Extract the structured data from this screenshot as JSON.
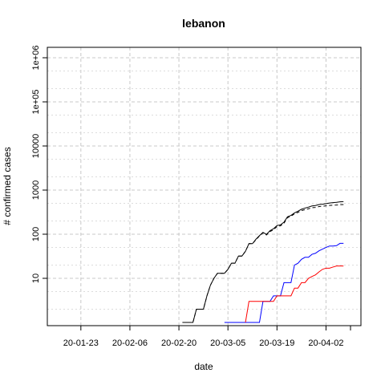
{
  "chart_data": {
    "type": "line",
    "title": "lebanon",
    "xlabel": "date",
    "ylabel": "# confirmed cases",
    "y_scale": "log",
    "ylim": [
      1,
      1000000
    ],
    "xlim": [
      "2020-01-18",
      "2020-04-09"
    ],
    "grid": true,
    "x_ticks": [
      {
        "date": "2020-01-23",
        "label": "20-01-23"
      },
      {
        "date": "2020-02-06",
        "label": "20-02-06"
      },
      {
        "date": "2020-02-20",
        "label": "20-02-20"
      },
      {
        "date": "2020-03-05",
        "label": "20-03-05"
      },
      {
        "date": "2020-03-19",
        "label": "20-03-19"
      },
      {
        "date": "2020-04-02",
        "label": "20-04-02"
      }
    ],
    "y_ticks": [
      {
        "value": 10,
        "label": "10"
      },
      {
        "value": 100,
        "label": "100"
      },
      {
        "value": 1000,
        "label": "1000"
      },
      {
        "value": 10000,
        "label": "10000"
      },
      {
        "value": 100000,
        "label": "1e+05"
      },
      {
        "value": 1000000,
        "label": "1e+06"
      }
    ],
    "series": [
      {
        "color": "#000000",
        "style": "solid",
        "points": [
          [
            "2020-02-21",
            1
          ],
          [
            "2020-02-24",
            1
          ],
          [
            "2020-02-25",
            2
          ],
          [
            "2020-02-27",
            2
          ],
          [
            "2020-02-28",
            4
          ],
          [
            "2020-02-29",
            7
          ],
          [
            "2020-03-01",
            10
          ],
          [
            "2020-03-02",
            13
          ],
          [
            "2020-03-04",
            13
          ],
          [
            "2020-03-05",
            16
          ],
          [
            "2020-03-06",
            22
          ],
          [
            "2020-03-07",
            22
          ],
          [
            "2020-03-08",
            32
          ],
          [
            "2020-03-09",
            32
          ],
          [
            "2020-03-10",
            41
          ],
          [
            "2020-03-11",
            61
          ],
          [
            "2020-03-12",
            61
          ],
          [
            "2020-03-13",
            77
          ],
          [
            "2020-03-14",
            93
          ],
          [
            "2020-03-15",
            110
          ],
          [
            "2020-03-16",
            99
          ],
          [
            "2020-03-17",
            120
          ],
          [
            "2020-03-18",
            133
          ],
          [
            "2020-03-19",
            157
          ],
          [
            "2020-03-20",
            163
          ],
          [
            "2020-03-21",
            187
          ],
          [
            "2020-03-22",
            248
          ],
          [
            "2020-03-23",
            267
          ],
          [
            "2020-03-24",
            304
          ],
          [
            "2020-03-25",
            333
          ],
          [
            "2020-03-26",
            368
          ],
          [
            "2020-03-27",
            391
          ],
          [
            "2020-03-28",
            412
          ],
          [
            "2020-03-29",
            438
          ],
          [
            "2020-03-30",
            446
          ],
          [
            "2020-03-31",
            470
          ],
          [
            "2020-04-01",
            479
          ],
          [
            "2020-04-02",
            494
          ],
          [
            "2020-04-03",
            508
          ],
          [
            "2020-04-04",
            520
          ],
          [
            "2020-04-05",
            527
          ],
          [
            "2020-04-06",
            541
          ],
          [
            "2020-04-07",
            548
          ]
        ]
      },
      {
        "color": "#000000",
        "style": "dashed",
        "points": [
          [
            "2020-02-21",
            1
          ],
          [
            "2020-02-24",
            1
          ],
          [
            "2020-02-25",
            2
          ],
          [
            "2020-02-27",
            2
          ],
          [
            "2020-02-28",
            4
          ],
          [
            "2020-02-29",
            7
          ],
          [
            "2020-03-01",
            10
          ],
          [
            "2020-03-02",
            13
          ],
          [
            "2020-03-04",
            13
          ],
          [
            "2020-03-05",
            16
          ],
          [
            "2020-03-06",
            22
          ],
          [
            "2020-03-07",
            22
          ],
          [
            "2020-03-08",
            32
          ],
          [
            "2020-03-09",
            32
          ],
          [
            "2020-03-10",
            41
          ],
          [
            "2020-03-11",
            61
          ],
          [
            "2020-03-12",
            61
          ],
          [
            "2020-03-13",
            75
          ],
          [
            "2020-03-14",
            91
          ],
          [
            "2020-03-15",
            107
          ],
          [
            "2020-03-16",
            96
          ],
          [
            "2020-03-17",
            115
          ],
          [
            "2020-03-18",
            126
          ],
          [
            "2020-03-19",
            149
          ],
          [
            "2020-03-20",
            155
          ],
          [
            "2020-03-21",
            178
          ],
          [
            "2020-03-22",
            237
          ],
          [
            "2020-03-23",
            256
          ],
          [
            "2020-03-24",
            290
          ],
          [
            "2020-03-25",
            313
          ],
          [
            "2020-03-26",
            344
          ],
          [
            "2020-03-27",
            360
          ],
          [
            "2020-03-28",
            378
          ],
          [
            "2020-03-29",
            400
          ],
          [
            "2020-03-30",
            404
          ],
          [
            "2020-03-31",
            423
          ],
          [
            "2020-04-01",
            430
          ],
          [
            "2020-04-02",
            440
          ],
          [
            "2020-04-03",
            448
          ],
          [
            "2020-04-04",
            455
          ],
          [
            "2020-04-05",
            458
          ],
          [
            "2020-04-06",
            467
          ],
          [
            "2020-04-07",
            471
          ]
        ]
      },
      {
        "color": "#0000ff",
        "style": "solid",
        "points": [
          [
            "2020-03-04",
            1
          ],
          [
            "2020-03-14",
            1
          ],
          [
            "2020-03-15",
            3
          ],
          [
            "2020-03-17",
            3
          ],
          [
            "2020-03-18",
            4
          ],
          [
            "2020-03-20",
            4
          ],
          [
            "2020-03-21",
            8
          ],
          [
            "2020-03-23",
            8
          ],
          [
            "2020-03-24",
            20
          ],
          [
            "2020-03-25",
            22
          ],
          [
            "2020-03-26",
            27
          ],
          [
            "2020-03-27",
            30
          ],
          [
            "2020-03-28",
            30
          ],
          [
            "2020-03-29",
            35
          ],
          [
            "2020-03-30",
            37
          ],
          [
            "2020-03-31",
            42
          ],
          [
            "2020-04-01",
            46
          ],
          [
            "2020-04-02",
            50
          ],
          [
            "2020-04-03",
            54
          ],
          [
            "2020-04-04",
            54
          ],
          [
            "2020-04-05",
            55
          ],
          [
            "2020-04-06",
            62
          ],
          [
            "2020-04-07",
            62
          ]
        ]
      },
      {
        "color": "#ff0000",
        "style": "solid",
        "points": [
          [
            "2020-03-10",
            1
          ],
          [
            "2020-03-11",
            3
          ],
          [
            "2020-03-18",
            3
          ],
          [
            "2020-03-19",
            4
          ],
          [
            "2020-03-23",
            4
          ],
          [
            "2020-03-24",
            6
          ],
          [
            "2020-03-25",
            6
          ],
          [
            "2020-03-26",
            8
          ],
          [
            "2020-03-27",
            8
          ],
          [
            "2020-03-28",
            10
          ],
          [
            "2020-03-29",
            11
          ],
          [
            "2020-03-30",
            12
          ],
          [
            "2020-03-31",
            14
          ],
          [
            "2020-04-01",
            16
          ],
          [
            "2020-04-02",
            17
          ],
          [
            "2020-04-03",
            17
          ],
          [
            "2020-04-04",
            18
          ],
          [
            "2020-04-05",
            19
          ],
          [
            "2020-04-06",
            19
          ],
          [
            "2020-04-07",
            19
          ]
        ]
      }
    ]
  }
}
